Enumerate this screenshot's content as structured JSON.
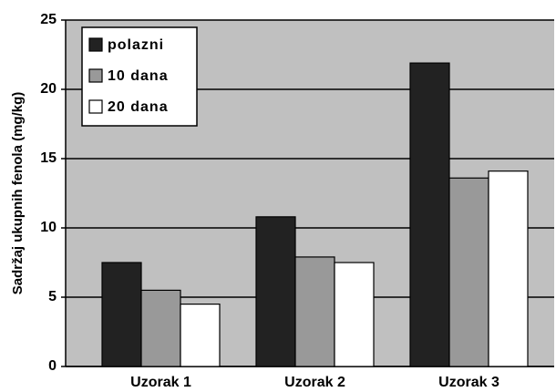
{
  "chart_data": {
    "type": "bar",
    "y_label": "Sadržaj ukupnih fenola (mg/kg)",
    "categories": [
      "Uzorak 1",
      "Uzorak 2",
      "Uzorak 3"
    ],
    "series": [
      {
        "name": "polazni",
        "color": "#222222",
        "values": [
          7.5,
          10.8,
          21.9
        ]
      },
      {
        "name": "10 dana",
        "color": "#999999",
        "values": [
          5.5,
          7.9,
          13.6
        ]
      },
      {
        "name": "20 dana",
        "color": "#ffffff",
        "values": [
          4.5,
          7.5,
          14.1
        ]
      }
    ],
    "ylim": [
      0,
      25
    ],
    "yticks": [
      0,
      5,
      10,
      15,
      20,
      25
    ],
    "grid": true,
    "legend": "upper left"
  }
}
